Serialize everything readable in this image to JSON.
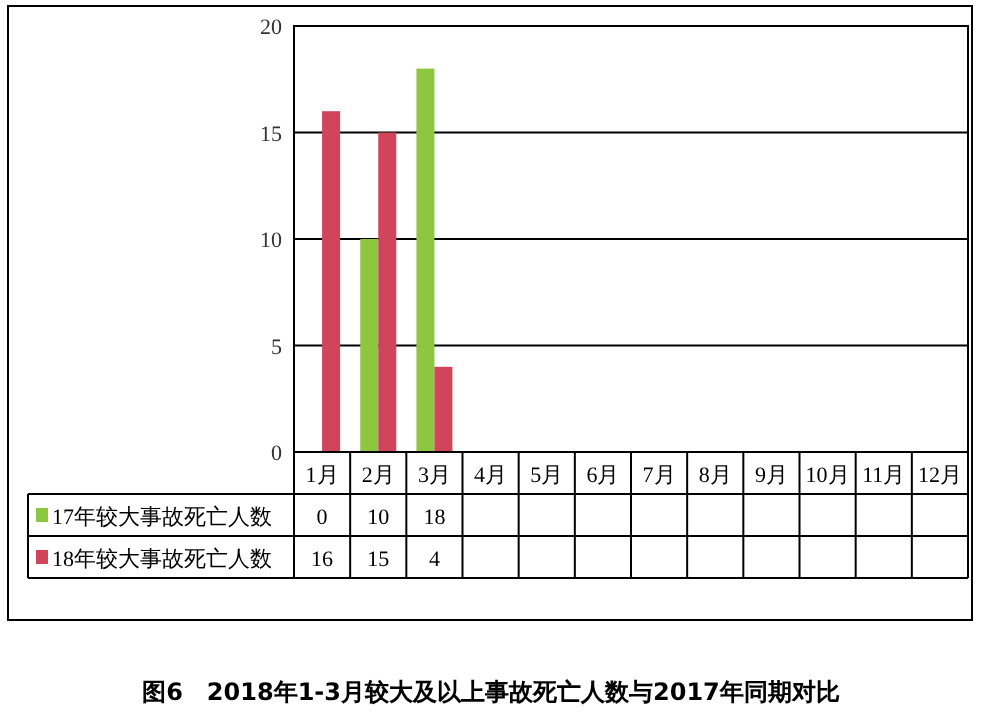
{
  "chart_data": {
    "type": "bar",
    "title": "图6　2018年1-3月较大及以上事故死亡人数与2017年同期对比",
    "categories": [
      "1月",
      "2月",
      "3月",
      "4月",
      "5月",
      "6月",
      "7月",
      "8月",
      "9月",
      "10月",
      "11月",
      "12月"
    ],
    "series": [
      {
        "name": "17年较大事故死亡人数",
        "color": "#8dc63f",
        "values": [
          0,
          10,
          18,
          null,
          null,
          null,
          null,
          null,
          null,
          null,
          null,
          null
        ]
      },
      {
        "name": "18年较大事故死亡人数",
        "color": "#d0455a",
        "values": [
          16,
          15,
          4,
          null,
          null,
          null,
          null,
          null,
          null,
          null,
          null,
          null
        ]
      }
    ],
    "ylim": [
      0,
      20
    ],
    "yticks": [
      0,
      5,
      10,
      15,
      20
    ],
    "grid": "y",
    "legend": "bottom",
    "data_labels": true
  }
}
